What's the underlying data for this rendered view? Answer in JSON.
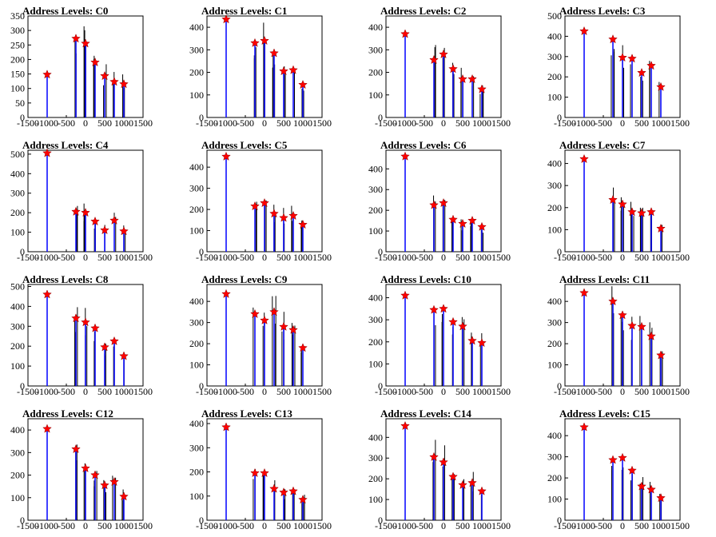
{
  "colors": {
    "peak": "#1010ff",
    "spike": "#000000",
    "marker": "#ff0000",
    "axis": "#000000"
  },
  "x_ticks": [
    "-1500",
    "-1000",
    "-500",
    "0",
    "500",
    "1000",
    "1500"
  ],
  "chart_data": [
    {
      "type": "bar",
      "title": "Address Levels: C0",
      "xlim": [
        -1500,
        1500
      ],
      "ylim": [
        0,
        350
      ],
      "yticks": [
        0,
        50,
        100,
        150,
        200,
        250,
        300,
        350
      ],
      "peaks": [
        -1000,
        -250,
        0,
        250,
        500,
        750,
        1000
      ],
      "values": [
        148,
        272,
        255,
        190,
        143,
        123,
        115
      ]
    },
    {
      "type": "bar",
      "title": "Address Levels: C1",
      "xlim": [
        -1500,
        1500
      ],
      "ylim": [
        0,
        450
      ],
      "yticks": [
        0,
        100,
        200,
        300,
        400
      ],
      "peaks": [
        -1000,
        -250,
        0,
        250,
        500,
        750,
        1000
      ],
      "values": [
        435,
        330,
        340,
        285,
        205,
        210,
        145
      ]
    },
    {
      "type": "bar",
      "title": "Address Levels: C2",
      "xlim": [
        -1500,
        1500
      ],
      "ylim": [
        0,
        450
      ],
      "yticks": [
        0,
        100,
        200,
        300,
        400
      ],
      "peaks": [
        -1000,
        -250,
        0,
        250,
        500,
        750,
        1000
      ],
      "values": [
        370,
        255,
        280,
        215,
        170,
        170,
        125
      ]
    },
    {
      "type": "bar",
      "title": "Address Levels: C3",
      "xlim": [
        -1500,
        1500
      ],
      "ylim": [
        0,
        500
      ],
      "yticks": [
        0,
        100,
        200,
        300,
        400,
        500
      ],
      "peaks": [
        -1000,
        -250,
        0,
        250,
        500,
        750,
        1000
      ],
      "values": [
        425,
        385,
        295,
        290,
        220,
        255,
        150
      ]
    },
    {
      "type": "bar",
      "title": "Address Levels: C4",
      "xlim": [
        -1500,
        1500
      ],
      "ylim": [
        0,
        520
      ],
      "yticks": [
        0,
        100,
        200,
        300,
        400,
        500
      ],
      "peaks": [
        -1000,
        -250,
        0,
        250,
        500,
        750,
        1000
      ],
      "values": [
        505,
        205,
        200,
        155,
        110,
        160,
        105
      ]
    },
    {
      "type": "bar",
      "title": "Address Levels: C5",
      "xlim": [
        -1500,
        1500
      ],
      "ylim": [
        0,
        480
      ],
      "yticks": [
        0,
        100,
        200,
        300,
        400
      ],
      "peaks": [
        -1000,
        -250,
        0,
        250,
        500,
        750,
        1000
      ],
      "values": [
        450,
        215,
        230,
        180,
        160,
        170,
        128
      ]
    },
    {
      "type": "bar",
      "title": "Address Levels: C6",
      "xlim": [
        -1500,
        1500
      ],
      "ylim": [
        0,
        490
      ],
      "yticks": [
        0,
        100,
        200,
        300,
        400
      ],
      "peaks": [
        -1000,
        -250,
        0,
        250,
        500,
        750,
        1000
      ],
      "values": [
        460,
        225,
        235,
        155,
        135,
        150,
        120
      ]
    },
    {
      "type": "bar",
      "title": "Address Levels: C7",
      "xlim": [
        -1500,
        1500
      ],
      "ylim": [
        0,
        460
      ],
      "yticks": [
        0,
        100,
        200,
        300,
        400
      ],
      "peaks": [
        -1000,
        -250,
        0,
        250,
        500,
        750,
        1000
      ],
      "values": [
        420,
        235,
        215,
        180,
        175,
        180,
        105
      ]
    },
    {
      "type": "bar",
      "title": "Address Levels: C8",
      "xlim": [
        -1500,
        1500
      ],
      "ylim": [
        0,
        510
      ],
      "yticks": [
        0,
        100,
        200,
        300,
        400,
        500
      ],
      "peaks": [
        -1000,
        -250,
        0,
        250,
        500,
        750,
        1000
      ],
      "values": [
        460,
        340,
        320,
        290,
        195,
        225,
        150
      ]
    },
    {
      "type": "bar",
      "title": "Address Levels: C9",
      "xlim": [
        -1500,
        1500
      ],
      "ylim": [
        0,
        480
      ],
      "yticks": [
        0,
        100,
        200,
        300,
        400
      ],
      "peaks": [
        -1000,
        -250,
        0,
        250,
        500,
        750,
        1000
      ],
      "values": [
        435,
        340,
        310,
        350,
        280,
        265,
        180
      ]
    },
    {
      "type": "bar",
      "title": "Address Levels: C10",
      "xlim": [
        -1500,
        1500
      ],
      "ylim": [
        0,
        460
      ],
      "yticks": [
        0,
        100,
        200,
        300,
        400
      ],
      "peaks": [
        -1000,
        -250,
        0,
        250,
        500,
        750,
        1000
      ],
      "values": [
        410,
        345,
        350,
        290,
        270,
        205,
        195
      ]
    },
    {
      "type": "bar",
      "title": "Address Levels: C11",
      "xlim": [
        -1500,
        1500
      ],
      "ylim": [
        0,
        480
      ],
      "yticks": [
        0,
        100,
        200,
        300,
        400
      ],
      "peaks": [
        -1000,
        -250,
        0,
        250,
        500,
        750,
        1000
      ],
      "values": [
        440,
        400,
        335,
        285,
        280,
        235,
        145
      ]
    },
    {
      "type": "bar",
      "title": "Address Levels: C12",
      "xlim": [
        -1500,
        1500
      ],
      "ylim": [
        0,
        450
      ],
      "yticks": [
        0,
        100,
        200,
        300,
        400
      ],
      "peaks": [
        -1000,
        -250,
        0,
        250,
        500,
        750,
        1000
      ],
      "values": [
        405,
        315,
        230,
        200,
        155,
        170,
        105
      ]
    },
    {
      "type": "bar",
      "title": "Address Levels: C13",
      "xlim": [
        -1500,
        1500
      ],
      "ylim": [
        0,
        420
      ],
      "yticks": [
        0,
        100,
        200,
        300,
        400
      ],
      "peaks": [
        -1000,
        -250,
        0,
        250,
        500,
        750,
        1000
      ],
      "values": [
        385,
        195,
        195,
        130,
        115,
        120,
        85
      ]
    },
    {
      "type": "bar",
      "title": "Address Levels: C14",
      "xlim": [
        -1500,
        1500
      ],
      "ylim": [
        0,
        490
      ],
      "yticks": [
        0,
        100,
        200,
        300,
        400
      ],
      "peaks": [
        -1000,
        -250,
        0,
        250,
        500,
        750,
        1000
      ],
      "values": [
        455,
        305,
        280,
        210,
        170,
        180,
        140
      ]
    },
    {
      "type": "bar",
      "title": "Address Levels: C15",
      "xlim": [
        -1500,
        1500
      ],
      "ylim": [
        0,
        480
      ],
      "yticks": [
        0,
        100,
        200,
        300,
        400
      ],
      "peaks": [
        -1000,
        -250,
        0,
        250,
        500,
        750,
        1000
      ],
      "values": [
        440,
        285,
        295,
        235,
        160,
        145,
        105
      ]
    }
  ]
}
